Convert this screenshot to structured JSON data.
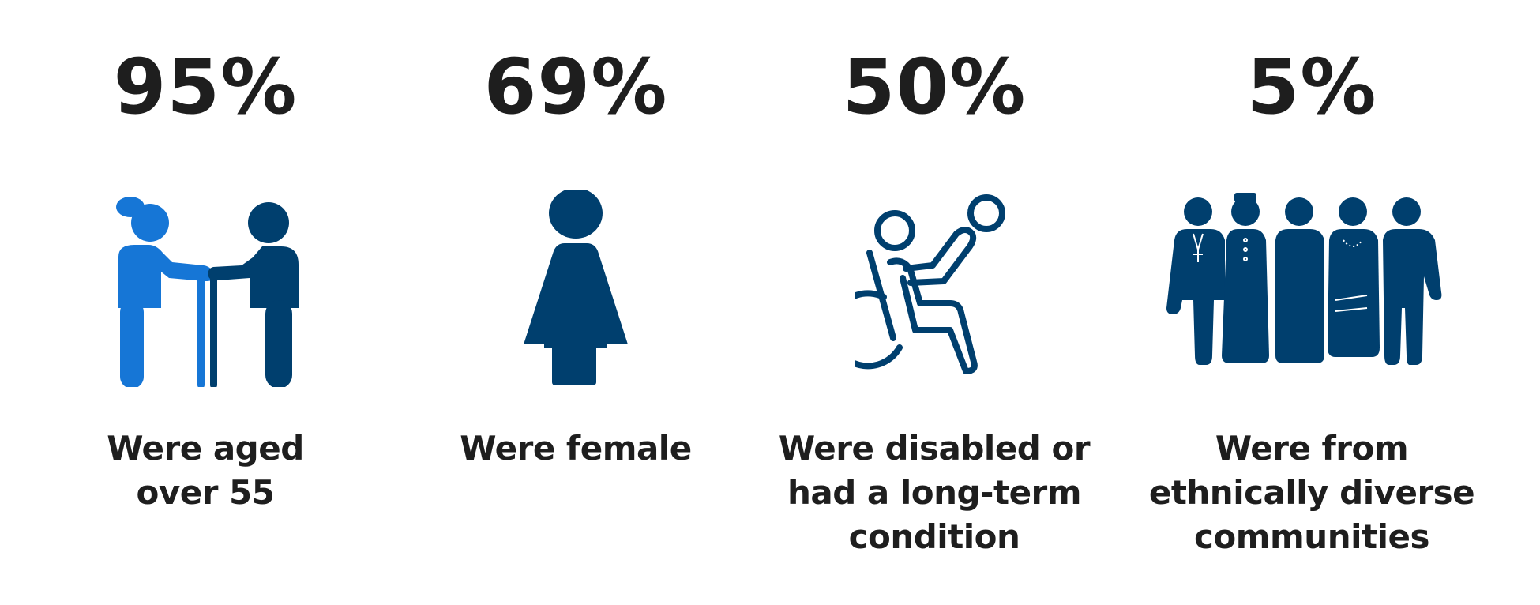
{
  "colors": {
    "text": "#1e1e1e",
    "accent_light": "#1676d6",
    "accent_dark": "#003f6e"
  },
  "stats": [
    {
      "value": "95%",
      "icon": "elderly-couple-icon",
      "caption_lines": [
        "Were aged",
        "over 55"
      ]
    },
    {
      "value": "69%",
      "icon": "female-icon",
      "caption_lines": [
        "Were female"
      ]
    },
    {
      "value": "50%",
      "icon": "wheelchair-user-icon",
      "caption_lines": [
        "Were disabled or",
        "had a long-term",
        "condition"
      ]
    },
    {
      "value": "5%",
      "icon": "diverse-group-icon",
      "caption_lines": [
        "Were from",
        "ethnically diverse",
        "communities"
      ]
    }
  ]
}
